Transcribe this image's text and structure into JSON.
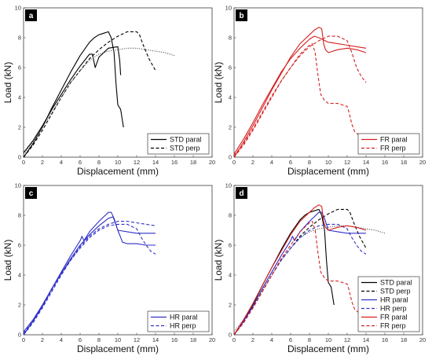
{
  "chart_data": [
    {
      "panel": "a",
      "type": "line",
      "xlabel": "Displacement (mm)",
      "ylabel": "Load (kN)",
      "xlim": [
        0,
        20
      ],
      "ylim": [
        0,
        10
      ],
      "xticks": [
        "0",
        "2",
        "4",
        "6",
        "8",
        "10",
        "12",
        "14",
        "16",
        "18",
        "20"
      ],
      "yticks": [
        "0",
        "2",
        "4",
        "6",
        "8",
        "10"
      ],
      "legend_position": "bottom-right",
      "series": [
        {
          "name": "STD paral",
          "style": "solid",
          "color": "#000000",
          "legend": true,
          "x": [
            0,
            1,
            2,
            3,
            4,
            5,
            6,
            7,
            7.5,
            8,
            8.5,
            9,
            9.3,
            9.6,
            9.8,
            10,
            10.3,
            10.6
          ],
          "y": [
            0,
            0.9,
            2,
            3.3,
            4.5,
            5.7,
            6.8,
            7.7,
            8.0,
            8.2,
            8.3,
            8.4,
            8.0,
            7.0,
            5.0,
            3.5,
            3.2,
            2.0
          ]
        },
        {
          "name": "",
          "style": "solid",
          "color": "#000000",
          "legend": false,
          "x": [
            0,
            1,
            2,
            3,
            4,
            5,
            6,
            7,
            7.3,
            7.6,
            8,
            9,
            10,
            10.2,
            10.3
          ],
          "y": [
            0.3,
            1.1,
            2.1,
            3.2,
            4.2,
            5.2,
            6.1,
            6.9,
            6.9,
            6.0,
            6.7,
            7.3,
            7.4,
            6.5,
            5.5
          ]
        },
        {
          "name": "STD perp",
          "style": "dashed",
          "color": "#000000",
          "legend": true,
          "x": [
            0,
            1,
            2,
            3,
            4,
            5,
            6,
            7,
            8,
            9,
            10,
            11,
            12,
            12.3,
            12.7,
            13.3,
            14
          ],
          "y": [
            0,
            0.8,
            1.8,
            2.9,
            4.0,
            5.0,
            5.8,
            6.6,
            7.2,
            7.7,
            8.1,
            8.4,
            8.4,
            8.2,
            7.5,
            6.6,
            5.8
          ]
        },
        {
          "name": "",
          "style": "dotted",
          "color": "#555555",
          "legend": false,
          "x": [
            0,
            1,
            2,
            3,
            4,
            5,
            6,
            7,
            8,
            9,
            10,
            11,
            12,
            13,
            14,
            15,
            16
          ],
          "y": [
            0.2,
            1.0,
            2.0,
            3.0,
            4.0,
            5.0,
            5.8,
            6.5,
            6.9,
            7.1,
            7.2,
            7.3,
            7.3,
            7.2,
            7.1,
            7.0,
            6.8
          ]
        }
      ]
    },
    {
      "panel": "b",
      "type": "line",
      "xlabel": "Displacement (mm)",
      "ylabel": "Load (kN)",
      "xlim": [
        0,
        20
      ],
      "ylim": [
        0,
        10
      ],
      "xticks": [
        "0",
        "2",
        "4",
        "6",
        "8",
        "10",
        "12",
        "14",
        "16",
        "18",
        "20"
      ],
      "yticks": [
        "0",
        "2",
        "4",
        "6",
        "8",
        "10"
      ],
      "legend_position": "bottom-right",
      "series": [
        {
          "name": "FR paral",
          "style": "solid",
          "color": "#d62020",
          "legend": true,
          "x": [
            0,
            1,
            2,
            3,
            4,
            5,
            6,
            7,
            8,
            8.5,
            9,
            9.3,
            9.5,
            9.7,
            10,
            11,
            12,
            13,
            14
          ],
          "y": [
            0,
            1.0,
            2.1,
            3.3,
            4.5,
            5.6,
            6.7,
            7.6,
            8.2,
            8.5,
            8.7,
            8.6,
            7.6,
            7.2,
            7.0,
            7.2,
            7.3,
            7.2,
            7.0
          ]
        },
        {
          "name": "",
          "style": "solid",
          "color": "#d62020",
          "legend": false,
          "x": [
            0,
            1,
            2,
            3,
            4,
            5,
            6,
            7,
            8,
            8.5,
            9,
            10,
            11,
            12,
            13,
            14
          ],
          "y": [
            0.2,
            1.2,
            2.3,
            3.5,
            4.6,
            5.7,
            6.6,
            7.3,
            7.9,
            8.1,
            8.0,
            7.7,
            7.6,
            7.5,
            7.4,
            7.3
          ]
        },
        {
          "name": "FR perp",
          "style": "dashed",
          "color": "#d62020",
          "legend": true,
          "x": [
            0,
            1,
            2,
            3,
            4,
            5,
            6,
            7,
            8,
            8.3,
            8.6,
            8.9,
            9.2,
            9.6,
            10,
            11,
            12,
            12.2,
            12.5,
            12.8,
            13.2
          ],
          "y": [
            0,
            0.8,
            1.8,
            2.9,
            4.0,
            5.1,
            6.0,
            6.9,
            7.5,
            7.6,
            7.0,
            5.5,
            4.2,
            3.8,
            3.6,
            3.6,
            3.4,
            3.0,
            2.2,
            1.7,
            1.5
          ]
        },
        {
          "name": "",
          "style": "dashed",
          "color": "#d62020",
          "legend": false,
          "x": [
            0,
            1,
            2,
            3,
            4,
            5,
            6,
            7,
            8,
            9,
            10,
            11,
            12,
            12.5,
            13,
            13.5,
            14
          ],
          "y": [
            0.1,
            0.9,
            1.9,
            3.0,
            4.1,
            5.1,
            6.0,
            6.8,
            7.4,
            7.8,
            8.1,
            8.1,
            7.8,
            7.0,
            6.0,
            5.4,
            5.0
          ]
        }
      ]
    },
    {
      "panel": "c",
      "type": "line",
      "xlabel": "Displacement (mm)",
      "ylabel": "Load (kN)",
      "xlim": [
        0,
        20
      ],
      "ylim": [
        0,
        10
      ],
      "xticks": [
        "0",
        "2",
        "4",
        "6",
        "8",
        "10",
        "12",
        "14",
        "16",
        "18",
        "20"
      ],
      "yticks": [
        "0",
        "2",
        "4",
        "6",
        "8",
        "10"
      ],
      "legend_position": "bottom-right",
      "series": [
        {
          "name": "HR paral",
          "style": "solid",
          "color": "#3030c8",
          "legend": true,
          "x": [
            0,
            1,
            2,
            3,
            4,
            5,
            6,
            6.2,
            6.4,
            7,
            8,
            9,
            9.3,
            9.6,
            10,
            11,
            12,
            13,
            14
          ],
          "y": [
            0,
            0.9,
            1.9,
            3.1,
            4.2,
            5.3,
            6.3,
            6.6,
            6.3,
            6.9,
            7.6,
            8.2,
            8.2,
            7.8,
            7.0,
            6.9,
            6.8,
            6.8,
            6.8
          ]
        },
        {
          "name": "",
          "style": "solid",
          "color": "#3030c8",
          "legend": false,
          "x": [
            0,
            1,
            2,
            3,
            4,
            5,
            6,
            7,
            8,
            9,
            9.5,
            10,
            10.5,
            11,
            12,
            13,
            14
          ],
          "y": [
            0.2,
            1.0,
            2.0,
            3.1,
            4.1,
            5.1,
            6.0,
            6.7,
            7.3,
            7.8,
            7.9,
            7.0,
            6.2,
            6.1,
            6.1,
            6.0,
            6.0
          ]
        },
        {
          "name": "HR perp",
          "style": "dashed",
          "color": "#3030c8",
          "legend": true,
          "x": [
            0,
            1,
            2,
            3,
            4,
            5,
            6,
            7,
            8,
            9,
            10,
            11,
            12,
            12.5,
            13,
            13.5,
            14
          ],
          "y": [
            0,
            0.8,
            1.8,
            2.9,
            4.0,
            5.0,
            5.8,
            6.5,
            7.0,
            7.3,
            7.4,
            7.4,
            7.1,
            6.5,
            6.0,
            5.6,
            5.4
          ]
        },
        {
          "name": "",
          "style": "dashed",
          "color": "#3030c8",
          "legend": false,
          "x": [
            0,
            1,
            2,
            3,
            4,
            5,
            6,
            7,
            8,
            9,
            10,
            11,
            12,
            13,
            14
          ],
          "y": [
            0.1,
            0.9,
            1.9,
            3.0,
            4.1,
            5.0,
            5.9,
            6.6,
            7.1,
            7.4,
            7.6,
            7.6,
            7.5,
            7.4,
            7.3
          ]
        }
      ]
    },
    {
      "panel": "d",
      "type": "line",
      "xlabel": "Displacement (mm)",
      "ylabel": "Load (kN)",
      "xlim": [
        0,
        20
      ],
      "ylim": [
        0,
        10
      ],
      "xticks": [
        "0",
        "2",
        "4",
        "6",
        "8",
        "10",
        "12",
        "14",
        "16",
        "18",
        "20"
      ],
      "yticks": [
        "0",
        "2",
        "4",
        "6",
        "8",
        "10"
      ],
      "legend_position": "bottom-right",
      "series": [
        {
          "name": "STD paral",
          "style": "solid",
          "color": "#000000",
          "legend": true,
          "x": [
            0,
            1,
            2,
            3,
            4,
            5,
            6,
            7,
            7.5,
            8,
            8.5,
            9,
            9.3,
            9.6,
            9.8,
            10,
            10.3,
            10.6
          ],
          "y": [
            0,
            0.9,
            2,
            3.3,
            4.5,
            5.7,
            6.8,
            7.7,
            8.0,
            8.2,
            8.3,
            8.4,
            8.0,
            7.0,
            5.0,
            3.5,
            3.2,
            2.0
          ]
        },
        {
          "name": "STD perp",
          "style": "dashed",
          "color": "#000000",
          "legend": true,
          "x": [
            0,
            1,
            2,
            3,
            4,
            5,
            6,
            7,
            8,
            9,
            10,
            11,
            12,
            12.3,
            12.7,
            13.3,
            14
          ],
          "y": [
            0,
            0.8,
            1.8,
            2.9,
            4.0,
            5.0,
            5.8,
            6.6,
            7.2,
            7.7,
            8.1,
            8.4,
            8.4,
            8.2,
            7.5,
            6.6,
            5.8
          ]
        },
        {
          "name": "",
          "style": "dotted",
          "color": "#555555",
          "legend": false,
          "x": [
            0,
            1,
            2,
            3,
            4,
            5,
            6,
            7,
            8,
            9,
            10,
            11,
            12,
            13,
            14,
            15,
            16
          ],
          "y": [
            0.2,
            1.0,
            2.0,
            3.0,
            4.0,
            5.0,
            5.8,
            6.5,
            6.9,
            7.1,
            7.2,
            7.3,
            7.3,
            7.2,
            7.1,
            7.0,
            6.8
          ]
        },
        {
          "name": "HR paral",
          "style": "solid",
          "color": "#3030c8",
          "legend": true,
          "x": [
            0,
            1,
            2,
            3,
            4,
            5,
            6,
            6.2,
            6.4,
            7,
            8,
            9,
            9.3,
            9.6,
            10,
            11,
            12,
            13,
            14
          ],
          "y": [
            0,
            0.9,
            1.9,
            3.1,
            4.2,
            5.3,
            6.3,
            6.6,
            6.3,
            6.9,
            7.6,
            8.2,
            8.2,
            7.8,
            7.0,
            6.9,
            6.8,
            6.8,
            6.8
          ]
        },
        {
          "name": "HR perp",
          "style": "dashed",
          "color": "#3030c8",
          "legend": true,
          "x": [
            0,
            1,
            2,
            3,
            4,
            5,
            6,
            7,
            8,
            9,
            10,
            11,
            12,
            12.5,
            13,
            13.5,
            14
          ],
          "y": [
            0,
            0.8,
            1.8,
            2.9,
            4.0,
            5.0,
            5.8,
            6.5,
            7.0,
            7.3,
            7.4,
            7.4,
            7.1,
            6.5,
            6.0,
            5.6,
            5.4
          ]
        },
        {
          "name": "FR paral",
          "style": "solid",
          "color": "#d62020",
          "legend": true,
          "x": [
            0,
            1,
            2,
            3,
            4,
            5,
            6,
            7,
            8,
            8.5,
            9,
            9.3,
            9.5,
            9.7,
            10,
            11,
            12,
            13,
            14
          ],
          "y": [
            0,
            1.0,
            2.1,
            3.3,
            4.5,
            5.6,
            6.7,
            7.6,
            8.2,
            8.5,
            8.7,
            8.6,
            7.6,
            7.2,
            7.0,
            7.2,
            7.3,
            7.2,
            7.0
          ]
        },
        {
          "name": "FR perp",
          "style": "dashed",
          "color": "#d62020",
          "legend": true,
          "x": [
            0,
            1,
            2,
            3,
            4,
            5,
            6,
            7,
            8,
            8.3,
            8.6,
            8.9,
            9.2,
            9.6,
            10,
            11,
            12,
            12.2,
            12.5,
            12.8,
            13.2
          ],
          "y": [
            0,
            0.8,
            1.8,
            2.9,
            4.0,
            5.1,
            6.0,
            6.9,
            7.5,
            7.6,
            7.0,
            5.5,
            4.2,
            3.8,
            3.6,
            3.6,
            3.4,
            3.0,
            2.2,
            1.7,
            1.5
          ]
        }
      ]
    }
  ]
}
